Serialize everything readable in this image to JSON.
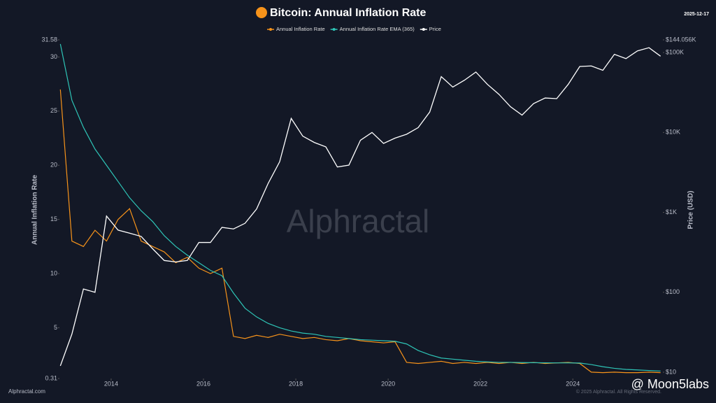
{
  "chart_data": {
    "type": "line",
    "title": "Bitcoin: Annual Inflation Rate",
    "date": "2025-12-17",
    "y_label": "Annual Inflation Rate",
    "y2_label": "Price (USD)",
    "source": "Alphractal.com",
    "watermark": "Alphractal",
    "copyright": "© 2025 Alphractal. All Rights Reserved.",
    "overlay": "@ Moon5labs",
    "y2_log": true,
    "x": [
      2012.9,
      2013.15,
      2013.4,
      2013.65,
      2013.9,
      2014.15,
      2014.4,
      2014.65,
      2014.9,
      2015.15,
      2015.4,
      2015.65,
      2015.9,
      2016.15,
      2016.4,
      2016.65,
      2016.9,
      2017.15,
      2017.4,
      2017.65,
      2017.9,
      2018.15,
      2018.4,
      2018.65,
      2018.9,
      2019.15,
      2019.4,
      2019.65,
      2019.9,
      2020.15,
      2020.4,
      2020.65,
      2020.9,
      2021.15,
      2021.4,
      2021.65,
      2021.9,
      2022.15,
      2022.4,
      2022.65,
      2022.9,
      2023.15,
      2023.4,
      2023.65,
      2023.9,
      2024.15,
      2024.4,
      2024.65,
      2024.9,
      2025.15,
      2025.4,
      2025.65,
      2025.9
    ],
    "xlim": [
      2012.88,
      2025.95
    ],
    "xticks": [
      2014,
      2016,
      2018,
      2020,
      2022,
      2024
    ],
    "ylim": [
      0.31,
      31.58
    ],
    "yticks": [
      0.31,
      5,
      10,
      15,
      20,
      25,
      30,
      31.58
    ],
    "y2lim": [
      8.34,
      144056
    ],
    "y2ticks": [
      {
        "value": 10,
        "label": "$10"
      },
      {
        "value": 100,
        "label": "$100"
      },
      {
        "value": 1000,
        "label": "$1K"
      },
      {
        "value": 10000,
        "label": "$10K"
      },
      {
        "value": 100000,
        "label": "$100K"
      },
      {
        "value": 144056,
        "label": "$144.056K"
      }
    ],
    "series": [
      {
        "name": "Annual Inflation Rate",
        "color": "#f7931a",
        "values": [
          27,
          13,
          12.5,
          14,
          13,
          15,
          16,
          13,
          12.5,
          12,
          11,
          11.5,
          10.5,
          10,
          10.5,
          4.2,
          4.0,
          4.3,
          4.1,
          4.4,
          4.2,
          4.0,
          4.1,
          3.9,
          3.8,
          4.0,
          3.8,
          3.7,
          3.6,
          3.7,
          1.8,
          1.7,
          1.8,
          1.9,
          1.7,
          1.8,
          1.7,
          1.8,
          1.7,
          1.8,
          1.7,
          1.8,
          1.7,
          1.75,
          1.8,
          1.7,
          0.9,
          0.85,
          0.9,
          0.85,
          0.85,
          0.9,
          0.85
        ]
      },
      {
        "name": "Annual Inflation Rate EMA (365)",
        "color": "#2ec4b6",
        "values": [
          31.2,
          26,
          23.5,
          21.5,
          20,
          18.5,
          17,
          15.8,
          14.8,
          13.5,
          12.5,
          11.7,
          11,
          10.3,
          9.8,
          8.2,
          6.8,
          6.0,
          5.4,
          5.0,
          4.7,
          4.5,
          4.4,
          4.2,
          4.1,
          4.0,
          3.9,
          3.85,
          3.8,
          3.75,
          3.5,
          2.9,
          2.5,
          2.2,
          2.1,
          2.0,
          1.9,
          1.85,
          1.8,
          1.8,
          1.78,
          1.77,
          1.76,
          1.75,
          1.75,
          1.74,
          1.6,
          1.4,
          1.25,
          1.15,
          1.1,
          1.05,
          1.0
        ]
      },
      {
        "name": "Price",
        "color": "#ffffff",
        "axis": "y2",
        "values": [
          12,
          30,
          110,
          100,
          900,
          600,
          550,
          500,
          350,
          250,
          240,
          250,
          420,
          420,
          650,
          620,
          730,
          1100,
          2300,
          4300,
          15000,
          9000,
          7500,
          6600,
          3700,
          3900,
          8000,
          10000,
          7300,
          8500,
          9500,
          11500,
          18000,
          50000,
          37000,
          45000,
          57000,
          40000,
          30000,
          21000,
          16500,
          23000,
          27000,
          26500,
          40000,
          67000,
          68000,
          60000,
          95000,
          84000,
          105000,
          115000,
          90000
        ]
      }
    ]
  }
}
